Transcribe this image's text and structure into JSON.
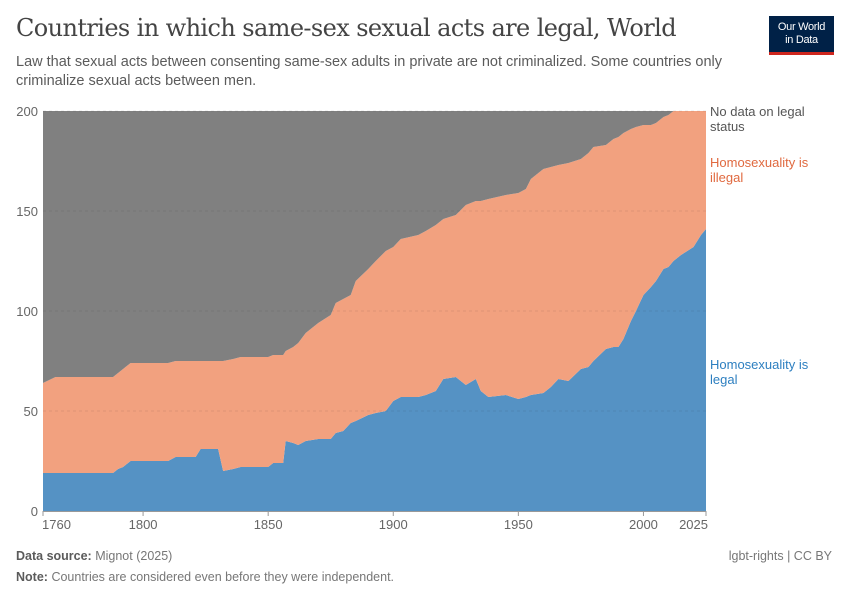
{
  "header": {
    "title": "Countries in which same-sex sexual acts are legal, World",
    "subtitle": "Law that sexual acts between consenting same-sex adults in private are not criminalized. Some countries only criminalize sexual acts between men.",
    "logo_line1": "Our World",
    "logo_line2": "in Data"
  },
  "footer": {
    "source_label": "Data source:",
    "source_value": "Mignot (2025)",
    "note_label": "Note:",
    "note_value": "Countries are considered even before they were independent.",
    "license": "lgbt-rights | CC BY"
  },
  "chart_data": {
    "type": "area",
    "stacked": true,
    "title": "Countries in which same-sex sexual acts are legal, World",
    "xlim": [
      1760,
      2025
    ],
    "ylim": [
      0,
      200
    ],
    "x_ticks": [
      1760,
      1800,
      1850,
      1900,
      1950,
      2000,
      2025
    ],
    "y_ticks": [
      0,
      50,
      100,
      150,
      200
    ],
    "grid": "horizontal dashed",
    "legend": "right, inline labels",
    "x": [
      1760,
      1765,
      1788,
      1790,
      1792,
      1795,
      1810,
      1813,
      1821,
      1823,
      1830,
      1832,
      1836,
      1839,
      1850,
      1852,
      1856,
      1857,
      1860,
      1862,
      1865,
      1870,
      1875,
      1877,
      1880,
      1883,
      1885,
      1890,
      1893,
      1897,
      1900,
      1903,
      1910,
      1913,
      1917,
      1920,
      1925,
      1929,
      1933,
      1935,
      1938,
      1945,
      1950,
      1953,
      1955,
      1960,
      1963,
      1966,
      1970,
      1975,
      1978,
      1980,
      1985,
      1988,
      1990,
      1992,
      1995,
      1997,
      2000,
      2003,
      2005,
      2008,
      2010,
      2012,
      2015,
      2020,
      2023,
      2025
    ],
    "series": [
      {
        "name": "Homosexuality is legal",
        "color": "#5592c4",
        "label_color": "#2d7fc0",
        "values": [
          19,
          19,
          19,
          21,
          22,
          25,
          25,
          27,
          27,
          31,
          31,
          20,
          21,
          22,
          22,
          24,
          24,
          35,
          34,
          33,
          35,
          36,
          36,
          39,
          40,
          44,
          45,
          48,
          49,
          50,
          55,
          57,
          57,
          58,
          60,
          66,
          67,
          63,
          66,
          60,
          57,
          58,
          56,
          57,
          58,
          59,
          62,
          66,
          65,
          71,
          72,
          75,
          81,
          82,
          82,
          86,
          95,
          100,
          108,
          112,
          115,
          121,
          122,
          125,
          128,
          132,
          138,
          141
        ]
      },
      {
        "name": "Homosexuality is illegal",
        "color": "#f2a17f",
        "label_color": "#e0693f",
        "values": [
          45,
          48,
          48,
          48,
          49,
          49,
          49,
          48,
          48,
          44,
          44,
          55,
          55,
          55,
          55,
          54,
          54,
          45,
          48,
          51,
          54,
          58,
          62,
          65,
          66,
          64,
          70,
          73,
          76,
          80,
          77,
          79,
          81,
          82,
          83,
          80,
          81,
          90,
          89,
          95,
          99,
          100,
          103,
          104,
          108,
          112,
          110,
          107,
          109,
          105,
          107,
          107,
          102,
          104,
          105,
          103,
          96,
          92,
          85,
          81,
          79,
          76,
          76,
          75,
          72,
          68,
          62,
          59
        ]
      },
      {
        "name": "No data on legal status",
        "color": "#808080",
        "label_color": "#555555",
        "values": [
          136,
          133,
          133,
          131,
          129,
          126,
          126,
          125,
          125,
          125,
          125,
          125,
          124,
          123,
          123,
          122,
          122,
          120,
          118,
          116,
          111,
          106,
          102,
          96,
          94,
          92,
          85,
          79,
          75,
          70,
          68,
          64,
          62,
          60,
          57,
          54,
          52,
          47,
          45,
          45,
          44,
          42,
          41,
          39,
          34,
          29,
          28,
          27,
          26,
          24,
          21,
          18,
          17,
          14,
          13,
          11,
          9,
          8,
          7,
          7,
          6,
          3,
          2,
          0,
          0,
          0,
          0,
          0
        ]
      }
    ],
    "legend_lines": [
      [
        "No data on legal",
        "status"
      ],
      [
        "Homosexuality is",
        "illegal"
      ],
      [
        "Homosexuality is",
        "legal"
      ]
    ]
  }
}
